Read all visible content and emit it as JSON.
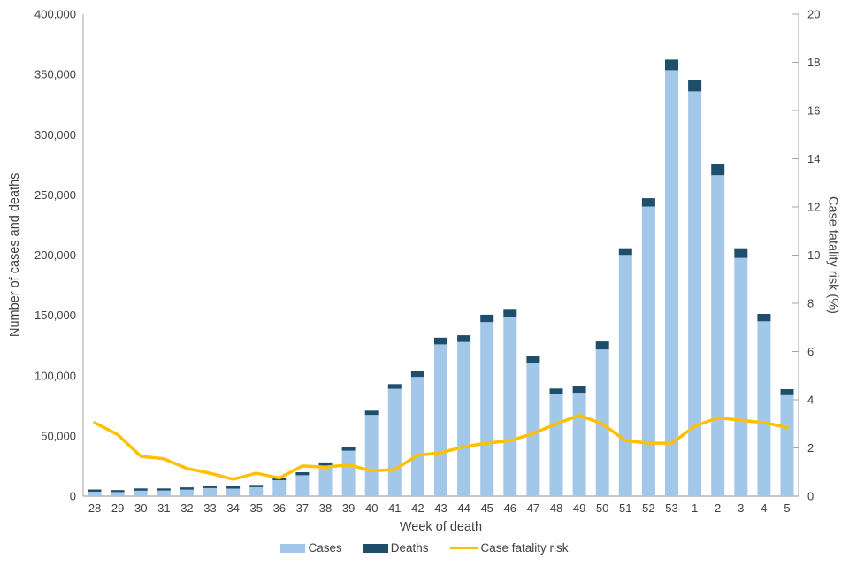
{
  "chart_data": {
    "type": "bar",
    "subtype": "stacked-bars-with-line-overlay",
    "title": "",
    "x_axis": {
      "label": "Week of death",
      "categories": [
        "28",
        "29",
        "30",
        "31",
        "32",
        "33",
        "34",
        "35",
        "36",
        "37",
        "38",
        "39",
        "40",
        "41",
        "42",
        "43",
        "44",
        "45",
        "46",
        "47",
        "48",
        "49",
        "50",
        "51",
        "52",
        "53",
        "1",
        "2",
        "3",
        "4",
        "5"
      ]
    },
    "left_axis": {
      "label": "Number of cases and deaths",
      "min": 0,
      "max": 400000,
      "step": 50000,
      "tick_values": [
        0,
        50000,
        100000,
        150000,
        200000,
        250000,
        300000,
        350000,
        400000
      ],
      "tick_labels": [
        "0",
        "50,000",
        "100,000",
        "150,000",
        "200,000",
        "250,000",
        "300,000",
        "350,000",
        "400,000"
      ]
    },
    "right_axis": {
      "label": "Case fatality risk (%)",
      "min": 0,
      "max": 20,
      "step": 2,
      "tick_values": [
        0,
        2,
        4,
        6,
        8,
        10,
        12,
        14,
        16,
        18,
        20
      ],
      "tick_labels": [
        "0",
        "2",
        "4",
        "6",
        "8",
        "10",
        "12",
        "14",
        "16",
        "18",
        "20"
      ]
    },
    "series": [
      {
        "name": "Cases",
        "type": "bar",
        "axis": "left",
        "color": "#a3c7e8",
        "values": [
          3700,
          3400,
          4600,
          4700,
          5500,
          6700,
          6300,
          7400,
          13200,
          17300,
          25000,
          37700,
          67500,
          89100,
          98900,
          125900,
          127900,
          144400,
          148800,
          110800,
          84400,
          85800,
          121800,
          200100,
          240400,
          353500,
          335900,
          266300,
          197700,
          145100,
          83800
        ]
      },
      {
        "name": "Deaths",
        "type": "bar",
        "axis": "left",
        "stacked_on": "Cases",
        "color": "#1f4e6b",
        "values": [
          1800,
          1600,
          1800,
          1700,
          1800,
          1900,
          1800,
          1900,
          2200,
          2500,
          3000,
          3300,
          3500,
          3900,
          5100,
          5600,
          5600,
          6100,
          6600,
          5400,
          4900,
          5400,
          6600,
          5600,
          6900,
          8800,
          9800,
          9700,
          8000,
          6100,
          5000
        ]
      },
      {
        "name": "Case fatality risk",
        "type": "line",
        "axis": "right",
        "color": "#ffc000",
        "values": [
          3.05,
          2.55,
          1.65,
          1.55,
          1.15,
          0.95,
          0.7,
          0.95,
          0.75,
          1.25,
          1.2,
          1.3,
          1.05,
          1.1,
          1.7,
          1.8,
          2.05,
          2.2,
          2.3,
          2.6,
          3.0,
          3.35,
          3.0,
          2.3,
          2.2,
          2.2,
          2.9,
          3.25,
          3.15,
          3.05,
          2.85
        ]
      }
    ],
    "legend": {
      "position": "bottom",
      "items": [
        "Cases",
        "Deaths",
        "Case fatality risk"
      ]
    },
    "style": {
      "axis_line_color": "#a6a6a6",
      "text_color": "#3f3f3f",
      "grid": "off",
      "background": "#ffffff"
    }
  }
}
